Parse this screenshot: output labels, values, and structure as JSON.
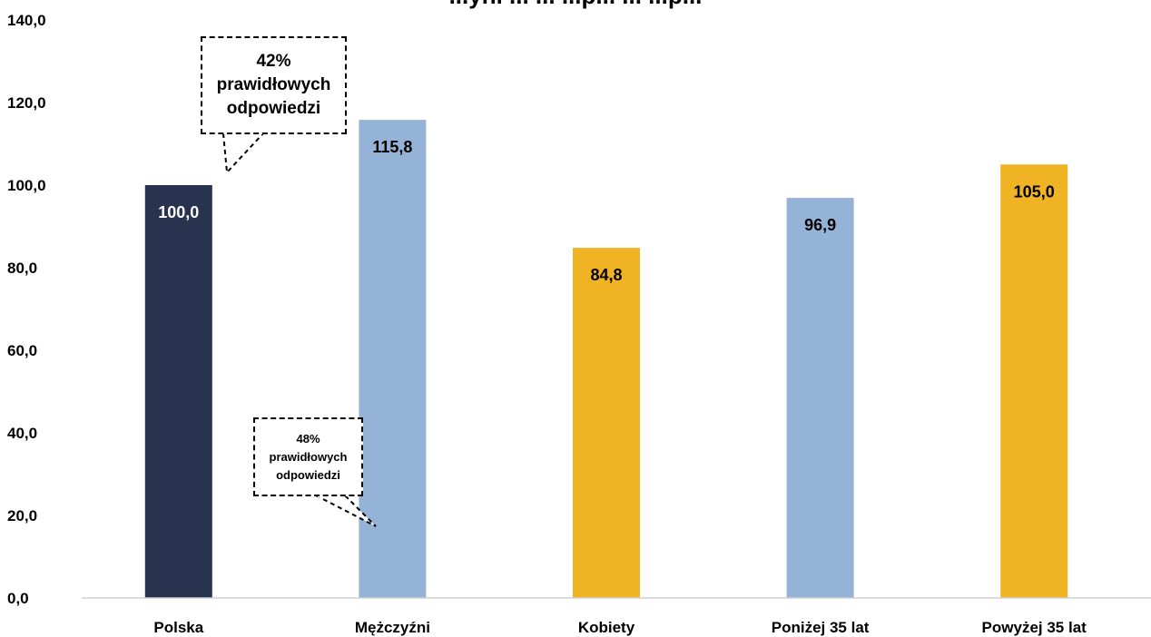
{
  "chart_data": {
    "type": "bar",
    "title": "...yni ... ... ...p... ... ...p...",
    "categories": [
      "Polska",
      "Mężczyźni",
      "Kobiety",
      "Poniżej 35 lat",
      "Powyżej 35 lat"
    ],
    "values": [
      100.0,
      115.8,
      84.8,
      96.9,
      105.0
    ],
    "value_labels": [
      "100,0",
      "115,8",
      "84,8",
      "96,9",
      "105,0"
    ],
    "bar_colors": [
      "#283350",
      "#95B3D7",
      "#F0B323",
      "#95B3D7",
      "#F0B323"
    ],
    "label_colors": [
      "#ffffff",
      "#000000",
      "#000000",
      "#000000",
      "#000000"
    ],
    "ylim": [
      0,
      140
    ],
    "yticks": [
      0,
      20,
      40,
      60,
      80,
      100,
      120,
      140
    ],
    "ytick_labels": [
      "0,0",
      "20,0",
      "40,0",
      "60,0",
      "80,0",
      "100,0",
      "120,0",
      "140,0"
    ],
    "grid": false,
    "xlabel": "",
    "ylabel": "",
    "annotations": [
      {
        "lines": [
          "42%",
          "prawidłowych",
          "odpowiedzi"
        ],
        "target": "Polska"
      },
      {
        "lines": [
          "48%",
          "prawidłowych",
          "odpowiedzi"
        ],
        "target": "Mężczyźni"
      }
    ]
  }
}
